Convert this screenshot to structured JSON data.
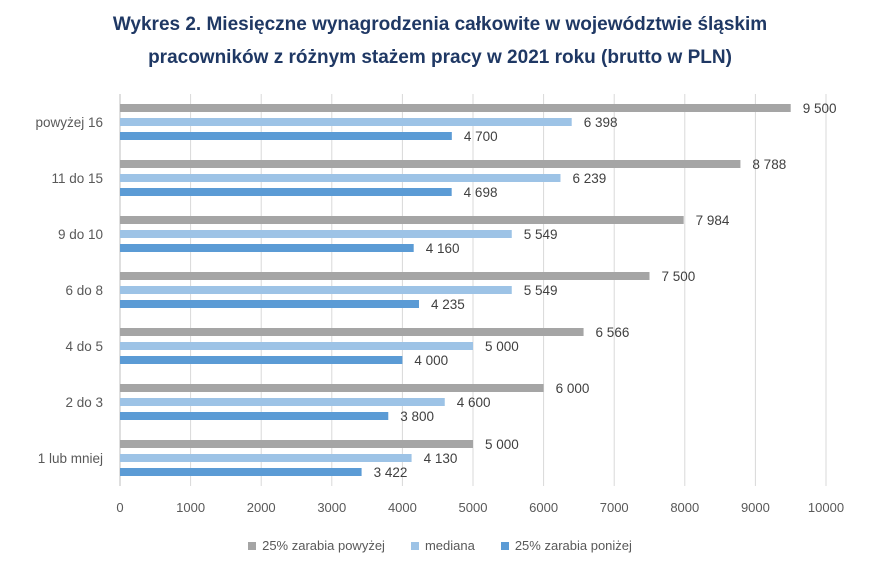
{
  "chart_data": {
    "type": "bar",
    "orientation": "horizontal",
    "title_line1": "Wykres 2. Miesięczne wynagrodzenia całkowite w województwie śląskim",
    "title_line2": "pracowników z różnym stażem pracy w 2021 roku (brutto w PLN)",
    "categories": [
      "powyżej 16",
      "11 do 15",
      "9 do 10",
      "6 do 8",
      "4 do 5",
      "2 do 3",
      "1 lub mniej"
    ],
    "series": [
      {
        "name": "25% zarabia powyżej",
        "color": "#A5A5A5",
        "values": [
          9500,
          8788,
          7984,
          7500,
          6566,
          6000,
          5000
        ],
        "labels": [
          "9 500",
          "8 788",
          "7 984",
          "7 500",
          "6 566",
          "6 000",
          "5 000"
        ]
      },
      {
        "name": "mediana",
        "color": "#9DC3E6",
        "values": [
          6398,
          6239,
          5549,
          5549,
          5000,
          4600,
          4130
        ],
        "labels": [
          "6 398",
          "6 239",
          "5 549",
          "5 549",
          "5 000",
          "4 600",
          "4 130"
        ]
      },
      {
        "name": "25% zarabia poniżej",
        "color": "#5B9BD5",
        "values": [
          4700,
          4698,
          4160,
          4235,
          4000,
          3800,
          3422
        ],
        "labels": [
          "4 700",
          "4 698",
          "4 160",
          "4 235",
          "4 000",
          "3 800",
          "3 422"
        ]
      }
    ],
    "xlim": [
      0,
      10000
    ],
    "xticks": [
      "0",
      "1000",
      "2000",
      "3000",
      "4000",
      "5000",
      "6000",
      "7000",
      "8000",
      "9000",
      "10000"
    ],
    "grid": true,
    "legend_position": "bottom"
  }
}
